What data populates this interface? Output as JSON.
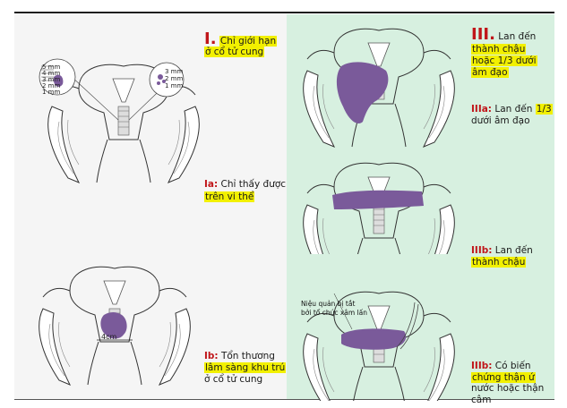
{
  "labels": {
    "stage_i_num": "I.",
    "stage_i_text1": "Chỉ giới hạn",
    "stage_i_text2": "ở cổ tử cung",
    "stage_ia_code": "Ia:",
    "stage_ia_text1": "Chỉ thấy được",
    "stage_ia_text2": "trên vi thể",
    "stage_ib_code": "Ib:",
    "stage_ib_text1": "Tổn thương",
    "stage_ib_text2": "lâm sàng khu trú",
    "stage_ib_text3": "ở cổ tử cung",
    "stage_iii_num": "III.",
    "stage_iii_text1": "Lan đến",
    "stage_iii_text2": "thành chậu",
    "stage_iii_text3": "hoặc 1/3 dưới",
    "stage_iii_text4": "âm đạo",
    "stage_iiia_code": "IIIa:",
    "stage_iiia_text1": "Lan đến",
    "stage_iiia_text2": "1/3",
    "stage_iiia_text3": "dưới âm đạo",
    "stage_iiib1_code": "IIIb:",
    "stage_iiib1_text1": "Lan đến",
    "stage_iiib1_text2": "thành chậu",
    "stage_iiib2_code": "IIIb:",
    "stage_iiib2_text1": "Có biến",
    "stage_iiib2_text2": "chứng thận ứ",
    "stage_iiib2_text3": "nước hoặc thận",
    "stage_iiib2_text4": "câm"
  },
  "annotations": {
    "depth_5mm": "5 mm",
    "depth_4mm": "4 mm",
    "depth_3mm": "3 mm",
    "depth_2mm": "2 mm",
    "depth_1mm": "1 mm",
    "r_3mm": "3 mm",
    "r_2mm": "2 mm",
    "r_1mm": "1 mm",
    "size_4cm": "4cm",
    "ureter_note1": "Niệu quản bị tắt",
    "ureter_note2": "bởi tổ chức xâm lấn"
  },
  "colors": {
    "highlight": "#f2f000",
    "stage_code": "#c0161a",
    "tumor": "#7a5a9a",
    "right_panel_bg": "#d7f0e0"
  }
}
